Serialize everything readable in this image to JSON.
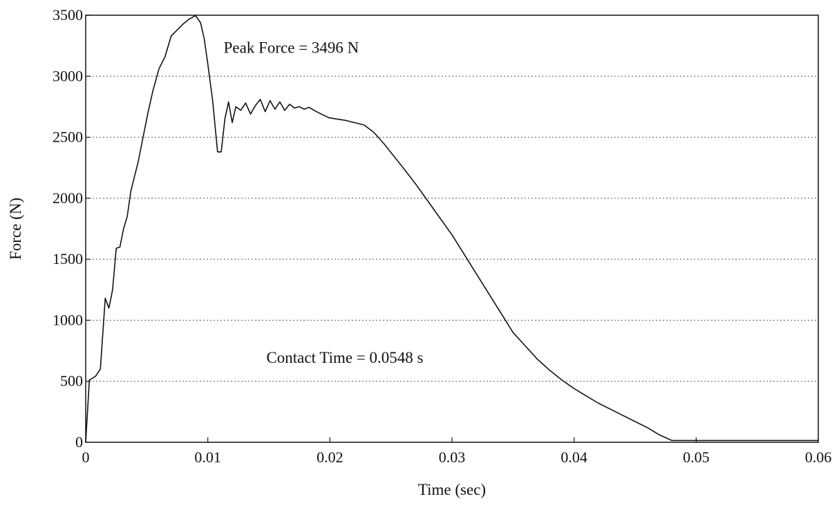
{
  "chart_data": {
    "type": "line",
    "title": "",
    "xlabel": "Time (sec)",
    "ylabel": "Force (N)",
    "xlim": [
      0,
      0.06
    ],
    "ylim": [
      0,
      3500
    ],
    "x_ticks": [
      0,
      0.01,
      0.02,
      0.03,
      0.04,
      0.05,
      0.06
    ],
    "x_tick_labels": [
      "0",
      "0.01",
      "0.02",
      "0.03",
      "0.04",
      "0.05",
      "0.06"
    ],
    "y_ticks": [
      0,
      500,
      1000,
      1500,
      2000,
      2500,
      3000,
      3500
    ],
    "y_tick_labels": [
      "0",
      "500",
      "1000",
      "1500",
      "2000",
      "2500",
      "3000",
      "3500"
    ],
    "grid": "horizontal-dotted",
    "legend": "none",
    "annotations": [
      {
        "text": "Peak Force = 3496 N",
        "x": 0.0113,
        "y": 3190
      },
      {
        "text": "Contact Time = 0.0548 s",
        "x": 0.0148,
        "y": 650
      }
    ],
    "series": [
      {
        "x": [
          0,
          0.0003,
          0.0008,
          0.0012,
          0.0016,
          0.0019,
          0.0022,
          0.0025,
          0.0028,
          0.0031,
          0.0034,
          0.0037,
          0.004,
          0.0043,
          0.0047,
          0.0051,
          0.0055,
          0.006,
          0.0065,
          0.007,
          0.0075,
          0.008,
          0.0085,
          0.009,
          0.0094,
          0.0097,
          0.01,
          0.0104,
          0.0108,
          0.0111,
          0.0114,
          0.0117,
          0.012,
          0.0123,
          0.0127,
          0.0131,
          0.0135,
          0.0139,
          0.0143,
          0.0147,
          0.0151,
          0.0155,
          0.0159,
          0.0163,
          0.0167,
          0.0171,
          0.0175,
          0.0179,
          0.0183,
          0.0187,
          0.0191,
          0.0195,
          0.0199,
          0.0205,
          0.0212,
          0.022,
          0.0228,
          0.0236,
          0.0244,
          0.0252,
          0.026,
          0.027,
          0.028,
          0.029,
          0.03,
          0.031,
          0.032,
          0.033,
          0.034,
          0.035,
          0.036,
          0.037,
          0.038,
          0.039,
          0.04,
          0.041,
          0.042,
          0.043,
          0.044,
          0.045,
          0.046,
          0.047,
          0.048,
          0.049,
          0.05,
          0.051,
          0.052,
          0.053,
          0.054,
          0.0548,
          0.056,
          0.058,
          0.06
        ],
        "y": [
          0,
          510,
          540,
          600,
          1180,
          1100,
          1250,
          1590,
          1600,
          1750,
          1850,
          2060,
          2180,
          2300,
          2500,
          2700,
          2880,
          3060,
          3160,
          3330,
          3380,
          3430,
          3470,
          3496,
          3440,
          3310,
          3100,
          2800,
          2380,
          2380,
          2650,
          2790,
          2620,
          2750,
          2720,
          2780,
          2690,
          2760,
          2810,
          2710,
          2800,
          2730,
          2790,
          2720,
          2770,
          2740,
          2750,
          2730,
          2745,
          2720,
          2700,
          2680,
          2660,
          2650,
          2640,
          2620,
          2600,
          2540,
          2450,
          2350,
          2250,
          2120,
          1980,
          1840,
          1700,
          1540,
          1380,
          1220,
          1060,
          900,
          790,
          680,
          590,
          510,
          440,
          380,
          320,
          270,
          220,
          170,
          120,
          60,
          15,
          15,
          15,
          15,
          15,
          15,
          15,
          15,
          15,
          15,
          15
        ]
      }
    ]
  }
}
